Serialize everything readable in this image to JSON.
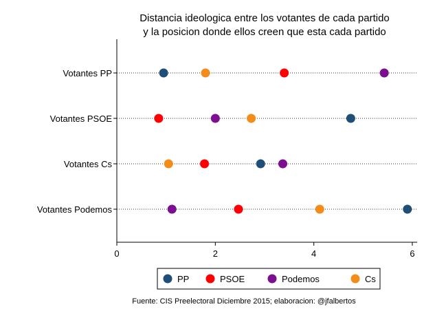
{
  "chart_data": {
    "type": "scatter",
    "title": [
      "Distancia ideologica entre los votantes de cada partido",
      "y la posicion donde ellos creen que esta cada partido"
    ],
    "categories": [
      "Votantes PP",
      "Votantes PSOE",
      "Votantes Cs",
      "Votantes Podemos"
    ],
    "series": [
      {
        "name": "PP",
        "color": "#1f4e79",
        "values": [
          0.95,
          4.75,
          2.92,
          5.9
        ]
      },
      {
        "name": "PSOE",
        "color": "#ff0000",
        "values": [
          3.4,
          0.85,
          1.78,
          2.47
        ]
      },
      {
        "name": "Podemos",
        "color": "#7b0f8f",
        "values": [
          5.43,
          2.0,
          3.37,
          1.12
        ]
      },
      {
        "name": "Cs",
        "color": "#f28c1b",
        "values": [
          1.8,
          2.73,
          1.05,
          4.12
        ]
      }
    ],
    "xlim": [
      0,
      6.1
    ],
    "xticks": [
      0,
      2,
      4,
      6
    ],
    "xlabel": "",
    "ylabel": "",
    "legend_position": "bottom",
    "note": "Fuente: CIS Preelectoral Diciembre 2015; elaboracion: @jfalbertos"
  }
}
